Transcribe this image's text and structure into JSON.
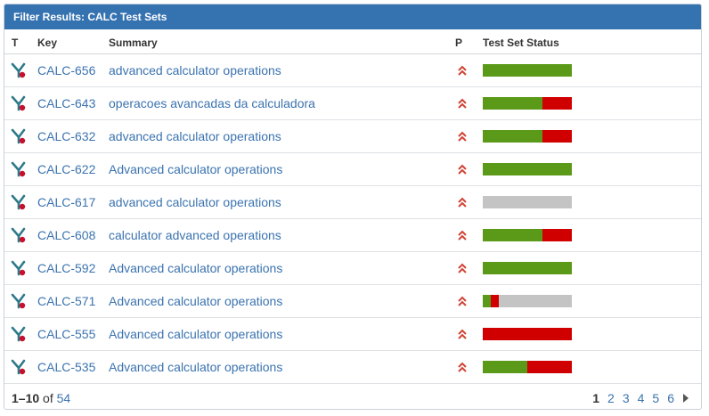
{
  "title": "Filter Results: CALC Test Sets",
  "columns": {
    "t": "T",
    "key": "Key",
    "summary": "Summary",
    "p": "P",
    "status": "Test Set Status"
  },
  "colors": {
    "green": "#5a9a18",
    "red": "#d00000",
    "grey": "#c4c4c4",
    "priority": "#d04437",
    "link": "#3b73af",
    "header_bg": "#3572b0"
  },
  "type_icon": "test-set-icon",
  "priority_icon": "priority-high-double-chevron-icon",
  "rows": [
    {
      "key": "CALC-656",
      "summary": "advanced calculator operations",
      "status": [
        {
          "color": "green",
          "pct": 100
        }
      ]
    },
    {
      "key": "CALC-643",
      "summary": "operacoes avancadas da calculadora",
      "status": [
        {
          "color": "green",
          "pct": 67
        },
        {
          "color": "red",
          "pct": 33
        }
      ]
    },
    {
      "key": "CALC-632",
      "summary": "advanced calculator operations",
      "status": [
        {
          "color": "green",
          "pct": 67
        },
        {
          "color": "red",
          "pct": 33
        }
      ]
    },
    {
      "key": "CALC-622",
      "summary": "Advanced calculator operations",
      "status": [
        {
          "color": "green",
          "pct": 100
        }
      ]
    },
    {
      "key": "CALC-617",
      "summary": "advanced calculator operations",
      "status": [
        {
          "color": "grey",
          "pct": 100
        }
      ]
    },
    {
      "key": "CALC-608",
      "summary": "calculator advanced operations",
      "status": [
        {
          "color": "green",
          "pct": 67
        },
        {
          "color": "red",
          "pct": 33
        }
      ]
    },
    {
      "key": "CALC-592",
      "summary": "Advanced calculator operations",
      "status": [
        {
          "color": "green",
          "pct": 100
        }
      ]
    },
    {
      "key": "CALC-571",
      "summary": "Advanced calculator operations",
      "status": [
        {
          "color": "green",
          "pct": 9
        },
        {
          "color": "red",
          "pct": 9
        },
        {
          "color": "grey",
          "pct": 82
        }
      ]
    },
    {
      "key": "CALC-555",
      "summary": "Advanced calculator operations",
      "status": [
        {
          "color": "red",
          "pct": 100
        }
      ]
    },
    {
      "key": "CALC-535",
      "summary": "Advanced calculator operations",
      "status": [
        {
          "color": "green",
          "pct": 50
        },
        {
          "color": "red",
          "pct": 50
        }
      ]
    }
  ],
  "footer": {
    "range": "1–10",
    "of": "of",
    "total": "54"
  },
  "pagination": {
    "current": "1",
    "pages": [
      "2",
      "3",
      "4",
      "5",
      "6"
    ]
  }
}
